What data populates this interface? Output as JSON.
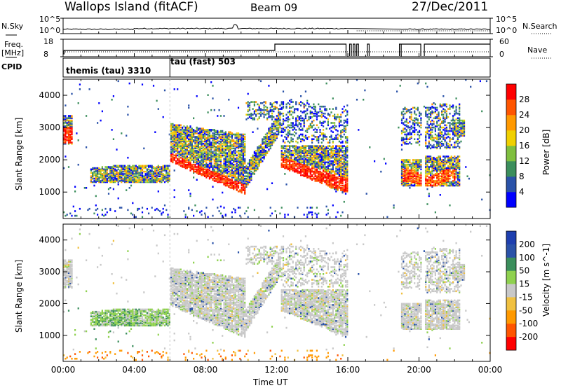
{
  "header": {
    "title": "Wallops Island (fitACF)",
    "beam": "Beam 09",
    "date": "27/Dec/2011"
  },
  "strips": {
    "nsky_label": "N.Sky",
    "nsky_ticks": [
      "10^5",
      "10^0"
    ],
    "nsearch_label": "N.Search",
    "nsearch_ticks": [
      "10^5",
      "10^0"
    ],
    "freq_label": "Freq.",
    "freq_unit": "[MHz]",
    "freq_ticks": [
      "18",
      "8"
    ],
    "nave_label": "Nave",
    "nave_ticks": [
      "60",
      "0"
    ],
    "cpid_label": "CPID",
    "cpid_modes": [
      "themis (tau) 3310",
      "tau (fast) 503"
    ]
  },
  "colors": {
    "power": [
      "#0000ff",
      "#2a52a8",
      "#3b8e5c",
      "#7fbf3f",
      "#f0d000",
      "#ff9900",
      "#ff5500",
      "#ff0000"
    ],
    "velocity": [
      "#ff0000",
      "#ff5500",
      "#ff9900",
      "#f0c040",
      "#c8c8c8",
      "#8fd14f",
      "#3b8e5c",
      "#2a52a8",
      "#1e3faf"
    ],
    "ground": "#c0c0c0"
  },
  "chart_data": [
    {
      "type": "heatmap",
      "panel": "power",
      "xlabel": "",
      "ylabel": "Slant Range [km]",
      "x_ticks": [
        "00:00",
        "04:00",
        "08:00",
        "12:00",
        "16:00",
        "20:00",
        "00:00"
      ],
      "xlim_hours": [
        0,
        24
      ],
      "y_ticks": [
        1000,
        2000,
        3000,
        4000
      ],
      "ylim": [
        180,
        4500
      ],
      "colorbar_label": "Power [dB]",
      "colorbar_ticks": [
        4,
        8,
        12,
        16,
        20,
        24,
        28
      ],
      "colorbar_range": [
        0,
        32
      ],
      "echo_regions": [
        {
          "t_start": 0.0,
          "t_end": 0.5,
          "r_low": 2500,
          "r_high": 3300
        },
        {
          "t_start": 1.5,
          "t_end": 6.0,
          "r_low": 1200,
          "r_high": 1800
        },
        {
          "t_start": 6.0,
          "t_end": 10.0,
          "r_low": 1000,
          "r_high": 3100
        },
        {
          "t_start": 10.0,
          "t_end": 12.0,
          "r_low": 1200,
          "r_high": 3800
        },
        {
          "t_start": 12.0,
          "t_end": 16.0,
          "r_low": 900,
          "r_high": 3900
        },
        {
          "t_start": 18.9,
          "t_end": 22.3,
          "r_low": 1150,
          "r_high": 3700
        }
      ]
    },
    {
      "type": "heatmap",
      "panel": "velocity",
      "xlabel": "Time UT",
      "ylabel": "Slant Range [km]",
      "x_ticks": [
        "00:00",
        "04:00",
        "08:00",
        "12:00",
        "16:00",
        "20:00",
        "00:00"
      ],
      "xlim_hours": [
        0,
        24
      ],
      "y_ticks": [
        1000,
        2000,
        3000,
        4000
      ],
      "ylim": [
        180,
        4500
      ],
      "colorbar_label": "Velocity [m s^-1]",
      "colorbar_ticks": [
        200,
        100,
        50,
        15,
        -15,
        -50,
        -100,
        -200
      ]
    }
  ]
}
